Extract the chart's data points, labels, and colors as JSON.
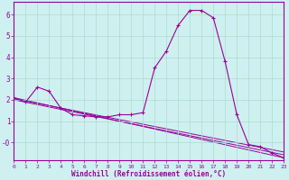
{
  "bg_color": "#cff0f0",
  "line_color": "#990099",
  "grid_color": "#aaddcc",
  "xlabel": "Windchill (Refroidissement éolien,°C)",
  "ylim": [
    -0.85,
    6.6
  ],
  "xlim": [
    0,
    23
  ],
  "yticks": [
    0,
    1,
    2,
    3,
    4,
    5,
    6
  ],
  "ytick_labels": [
    "-0",
    "1",
    "2",
    "3",
    "4",
    "5",
    "6"
  ],
  "x_ticks": [
    0,
    1,
    2,
    3,
    4,
    5,
    6,
    7,
    8,
    9,
    10,
    11,
    12,
    13,
    14,
    15,
    16,
    17,
    18,
    19,
    20,
    21,
    22,
    23
  ],
  "series1_x": [
    0,
    1,
    2,
    3,
    4,
    5,
    6,
    7,
    8,
    9,
    10,
    11,
    12,
    13,
    14,
    15,
    16,
    17,
    18,
    19,
    20,
    21,
    22,
    23
  ],
  "series1_y": [
    2.1,
    1.9,
    2.6,
    2.4,
    1.6,
    1.3,
    1.25,
    1.2,
    1.2,
    1.3,
    1.3,
    1.4,
    3.5,
    4.3,
    5.5,
    6.2,
    6.2,
    5.85,
    3.8,
    1.3,
    -0.1,
    -0.2,
    -0.5,
    -0.72
  ],
  "series2_x": [
    0,
    23
  ],
  "series2_y": [
    2.1,
    -0.72
  ],
  "series3_x": [
    0,
    23
  ],
  "series3_y": [
    2.05,
    -0.45
  ],
  "series4_x": [
    0,
    23
  ],
  "series4_y": [
    2.0,
    -0.58
  ]
}
